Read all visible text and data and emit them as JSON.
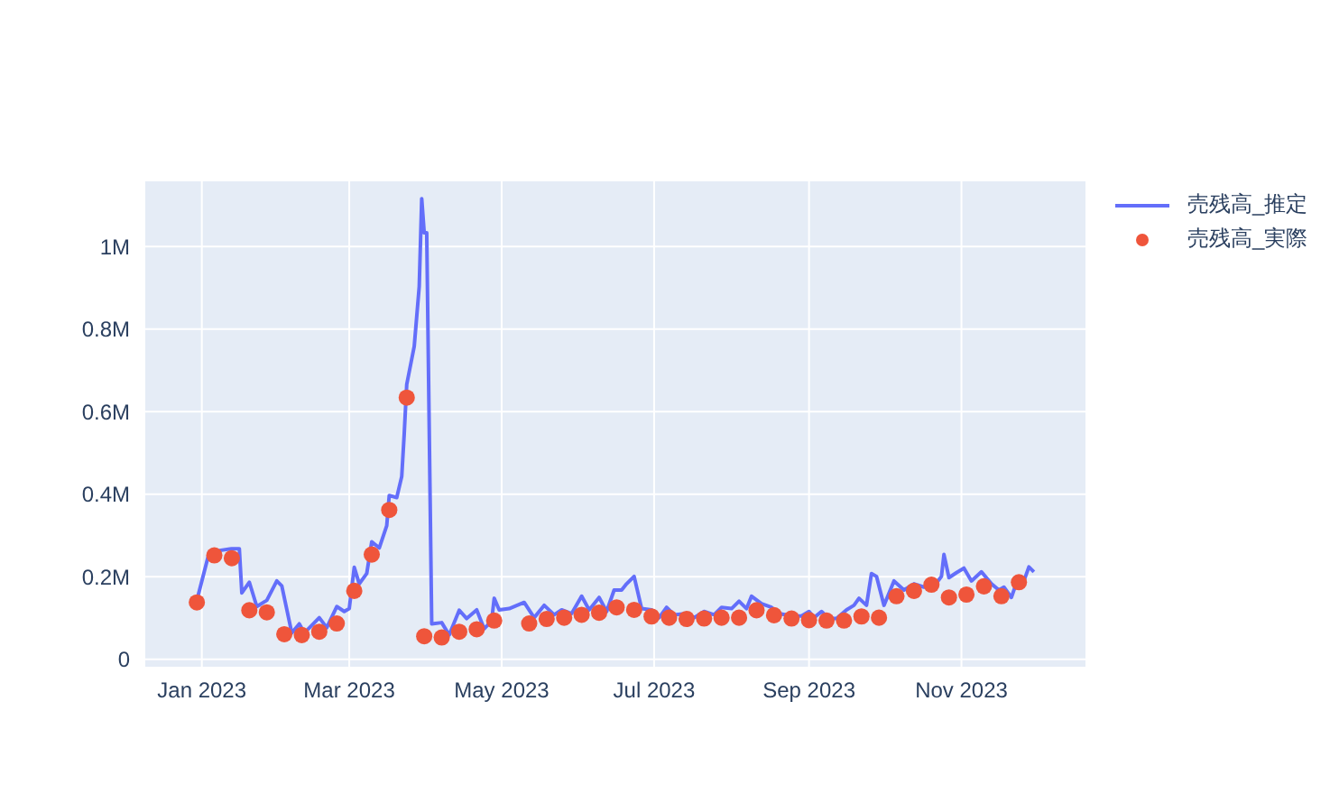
{
  "chart_data": {
    "type": "line",
    "xlim": [
      "2022-12-09",
      "2023-12-21"
    ],
    "ylim": [
      -20000,
      1160000
    ],
    "xticks": [
      {
        "value": "2023-01-01",
        "label": "Jan 2023"
      },
      {
        "value": "2023-03-01",
        "label": "Mar 2023"
      },
      {
        "value": "2023-05-01",
        "label": "May 2023"
      },
      {
        "value": "2023-07-01",
        "label": "Jul 2023"
      },
      {
        "value": "2023-09-01",
        "label": "Sep 2023"
      },
      {
        "value": "2023-11-01",
        "label": "Nov 2023"
      }
    ],
    "yticks": [
      0,
      {
        "value": 200000,
        "label": "0.2M"
      },
      {
        "value": 400000,
        "label": "0.4M"
      },
      {
        "value": 600000,
        "label": "0.6M"
      },
      {
        "value": 800000,
        "label": "0.8M"
      },
      {
        "value": 1000000,
        "label": "1M"
      }
    ],
    "grid": true,
    "legend": "top right",
    "series": [
      {
        "name": "売残高_推定",
        "type": "line",
        "line_style": "solid",
        "marker": "none",
        "color": "#636efa",
        "x": [
          "2022-12-30",
          "2023-01-04",
          "2023-01-13",
          "2023-01-16",
          "2023-01-17",
          "2023-01-20",
          "2023-01-23",
          "2023-01-27",
          "2023-01-31",
          "2023-02-02",
          "2023-02-06",
          "2023-02-09",
          "2023-02-11",
          "2023-02-17",
          "2023-02-20",
          "2023-02-24",
          "2023-02-27",
          "2023-03-01",
          "2023-03-03",
          "2023-03-05",
          "2023-03-08",
          "2023-03-10",
          "2023-03-13",
          "2023-03-16",
          "2023-03-17",
          "2023-03-20",
          "2023-03-22",
          "2023-03-23",
          "2023-03-24",
          "2023-03-27",
          "2023-03-29",
          "2023-03-30",
          "2023-03-31",
          "2023-04-01",
          "2023-04-03",
          "2023-04-07",
          "2023-04-10",
          "2023-04-14",
          "2023-04-17",
          "2023-04-21",
          "2023-04-24",
          "2023-04-27",
          "2023-04-28",
          "2023-04-30",
          "2023-05-04",
          "2023-05-10",
          "2023-05-14",
          "2023-05-18",
          "2023-05-22",
          "2023-05-25",
          "2023-05-29",
          "2023-06-02",
          "2023-06-05",
          "2023-06-09",
          "2023-06-12",
          "2023-06-15",
          "2023-06-18",
          "2023-06-20",
          "2023-06-23",
          "2023-06-26",
          "2023-06-30",
          "2023-07-03",
          "2023-07-06",
          "2023-07-09",
          "2023-07-14",
          "2023-07-17",
          "2023-07-21",
          "2023-07-25",
          "2023-07-28",
          "2023-08-01",
          "2023-08-04",
          "2023-08-07",
          "2023-08-09",
          "2023-08-13",
          "2023-08-17",
          "2023-08-20",
          "2023-08-25",
          "2023-08-29",
          "2023-09-01",
          "2023-09-03",
          "2023-09-06",
          "2023-09-09",
          "2023-09-12",
          "2023-09-16",
          "2023-09-19",
          "2023-09-21",
          "2023-09-24",
          "2023-09-26",
          "2023-09-28",
          "2023-10-01",
          "2023-10-05",
          "2023-10-09",
          "2023-10-13",
          "2023-10-17",
          "2023-10-22",
          "2023-10-24",
          "2023-10-25",
          "2023-10-27",
          "2023-10-30",
          "2023-11-02",
          "2023-11-05",
          "2023-11-09",
          "2023-11-13",
          "2023-11-16",
          "2023-11-18",
          "2023-11-21",
          "2023-11-23",
          "2023-11-26",
          "2023-11-28",
          "2023-11-30"
        ],
        "values": [
          143000,
          260000,
          268000,
          268000,
          161000,
          187000,
          128000,
          143000,
          190000,
          178000,
          64000,
          86000,
          64000,
          101000,
          77000,
          128000,
          116000,
          123000,
          223000,
          183000,
          208000,
          285000,
          270000,
          324000,
          397000,
          392000,
          443000,
          547000,
          666000,
          758000,
          903000,
          1116000,
          1033000,
          1033000,
          86000,
          89000,
          59000,
          119000,
          99000,
          120000,
          74000,
          94000,
          148000,
          120000,
          123000,
          138000,
          101000,
          131000,
          108000,
          120000,
          111000,
          153000,
          120000,
          150000,
          116000,
          168000,
          168000,
          183000,
          201000,
          123000,
          120000,
          101000,
          126000,
          108000,
          111000,
          101000,
          116000,
          108000,
          126000,
          123000,
          141000,
          123000,
          153000,
          135000,
          126000,
          111000,
          105000,
          105000,
          116000,
          101000,
          116000,
          99000,
          99000,
          120000,
          131000,
          148000,
          131000,
          208000,
          201000,
          131000,
          190000,
          168000,
          183000,
          175000,
          185000,
          201000,
          254000,
          198000,
          210000,
          221000,
          190000,
          212000,
          183000,
          168000,
          175000,
          150000,
          185000,
          190000,
          224000,
          212000
        ]
      },
      {
        "name": "売残高_実際",
        "type": "scatter",
        "marker": "circle",
        "color": "#ef553b",
        "x": [
          "2022-12-30",
          "2023-01-06",
          "2023-01-13",
          "2023-01-20",
          "2023-01-27",
          "2023-02-03",
          "2023-02-10",
          "2023-02-17",
          "2023-02-24",
          "2023-03-03",
          "2023-03-10",
          "2023-03-17",
          "2023-03-24",
          "2023-03-31",
          "2023-04-07",
          "2023-04-14",
          "2023-04-21",
          "2023-04-28",
          "2023-05-12",
          "2023-05-19",
          "2023-05-26",
          "2023-06-02",
          "2023-06-09",
          "2023-06-16",
          "2023-06-23",
          "2023-06-30",
          "2023-07-07",
          "2023-07-14",
          "2023-07-21",
          "2023-07-28",
          "2023-08-04",
          "2023-08-11",
          "2023-08-18",
          "2023-08-25",
          "2023-09-01",
          "2023-09-08",
          "2023-09-15",
          "2023-09-22",
          "2023-09-29",
          "2023-10-06",
          "2023-10-13",
          "2023-10-20",
          "2023-10-27",
          "2023-11-03",
          "2023-11-10",
          "2023-11-17",
          "2023-11-24"
        ],
        "values": [
          138000,
          252000,
          245000,
          119000,
          114000,
          61000,
          59000,
          67000,
          87000,
          166000,
          254000,
          362000,
          634000,
          56000,
          53000,
          67000,
          73000,
          94000,
          87000,
          98000,
          101000,
          108000,
          113000,
          126000,
          120000,
          104000,
          101000,
          98000,
          99000,
          101000,
          101000,
          119000,
          107000,
          99000,
          95000,
          94000,
          94000,
          104000,
          101000,
          153000,
          166000,
          181000,
          150000,
          157000,
          177000,
          153000,
          187000
        ]
      }
    ]
  }
}
